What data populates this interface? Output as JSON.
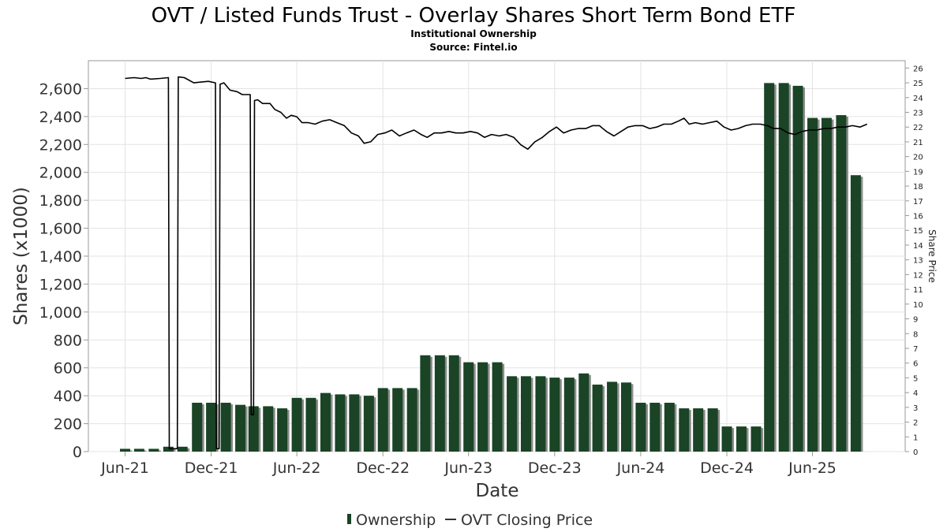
{
  "chart_data": {
    "type": "bar",
    "title": "OVT / Listed Funds Trust - Overlay Shares Short Term Bond ETF",
    "subtitle_lines": [
      "Institutional Ownership",
      "Source: Fintel.io"
    ],
    "xlabel": "Date",
    "ylabel": "Shares (x1000)",
    "y2label": "Share Price",
    "ylim": [
      0,
      2800
    ],
    "y2lim": [
      0,
      26.5
    ],
    "xlim": [
      "2021-03-15",
      "2025-12-15"
    ],
    "grid": true,
    "legend_placement": "bottom-center",
    "y_ticks": [
      0,
      200,
      400,
      600,
      800,
      1000,
      1200,
      1400,
      1600,
      1800,
      2000,
      2200,
      2400,
      2600
    ],
    "y_tick_labels": [
      "0",
      "200",
      "400",
      "600",
      "800",
      "1,000",
      "1,200",
      "1,400",
      "1,600",
      "1,800",
      "2,000",
      "2,200",
      "2,400",
      "2,600"
    ],
    "y2_ticks": [
      0,
      1,
      2,
      3,
      4,
      5,
      6,
      7,
      8,
      9,
      10,
      11,
      12,
      13,
      14,
      15,
      16,
      17,
      18,
      19,
      20,
      21,
      22,
      23,
      24,
      25,
      26
    ],
    "x_ticks": [
      {
        "date": "2021-06-01",
        "label": "Jun-21"
      },
      {
        "date": "2021-12-01",
        "label": "Dec-21"
      },
      {
        "date": "2022-06-01",
        "label": "Jun-22"
      },
      {
        "date": "2022-12-01",
        "label": "Dec-22"
      },
      {
        "date": "2023-06-01",
        "label": "Jun-23"
      },
      {
        "date": "2023-12-01",
        "label": "Dec-23"
      },
      {
        "date": "2024-06-01",
        "label": "Jun-24"
      },
      {
        "date": "2024-12-01",
        "label": "Dec-24"
      },
      {
        "date": "2025-06-01",
        "label": "Jun-25"
      }
    ],
    "series": [
      {
        "name": "Ownership",
        "kind": "bar",
        "color": "#1a4425",
        "shadow_color": "#8c8c8c",
        "points": [
          {
            "date": "2021-06-01",
            "value": 20
          },
          {
            "date": "2021-07-01",
            "value": 20
          },
          {
            "date": "2021-08-01",
            "value": 20
          },
          {
            "date": "2021-09-01",
            "value": 35
          },
          {
            "date": "2021-10-01",
            "value": 35
          },
          {
            "date": "2021-11-01",
            "value": 350
          },
          {
            "date": "2021-12-01",
            "value": 350
          },
          {
            "date": "2022-01-01",
            "value": 350
          },
          {
            "date": "2022-02-01",
            "value": 335
          },
          {
            "date": "2022-03-01",
            "value": 325
          },
          {
            "date": "2022-04-01",
            "value": 325
          },
          {
            "date": "2022-05-01",
            "value": 310
          },
          {
            "date": "2022-06-01",
            "value": 385
          },
          {
            "date": "2022-07-01",
            "value": 385
          },
          {
            "date": "2022-08-01",
            "value": 420
          },
          {
            "date": "2022-09-01",
            "value": 410
          },
          {
            "date": "2022-10-01",
            "value": 410
          },
          {
            "date": "2022-11-01",
            "value": 400
          },
          {
            "date": "2022-12-01",
            "value": 455
          },
          {
            "date": "2023-01-01",
            "value": 455
          },
          {
            "date": "2023-02-01",
            "value": 455
          },
          {
            "date": "2023-03-01",
            "value": 690
          },
          {
            "date": "2023-04-01",
            "value": 690
          },
          {
            "date": "2023-05-01",
            "value": 690
          },
          {
            "date": "2023-06-01",
            "value": 640
          },
          {
            "date": "2023-07-01",
            "value": 640
          },
          {
            "date": "2023-08-01",
            "value": 640
          },
          {
            "date": "2023-09-01",
            "value": 540
          },
          {
            "date": "2023-10-01",
            "value": 540
          },
          {
            "date": "2023-11-01",
            "value": 540
          },
          {
            "date": "2023-12-01",
            "value": 530
          },
          {
            "date": "2024-01-01",
            "value": 530
          },
          {
            "date": "2024-02-01",
            "value": 560
          },
          {
            "date": "2024-03-01",
            "value": 480
          },
          {
            "date": "2024-04-01",
            "value": 500
          },
          {
            "date": "2024-05-01",
            "value": 495
          },
          {
            "date": "2024-06-01",
            "value": 350
          },
          {
            "date": "2024-07-01",
            "value": 350
          },
          {
            "date": "2024-08-01",
            "value": 350
          },
          {
            "date": "2024-09-01",
            "value": 310
          },
          {
            "date": "2024-10-01",
            "value": 310
          },
          {
            "date": "2024-11-01",
            "value": 310
          },
          {
            "date": "2024-12-01",
            "value": 180
          },
          {
            "date": "2025-01-01",
            "value": 180
          },
          {
            "date": "2025-02-01",
            "value": 180
          },
          {
            "date": "2025-03-01",
            "value": 2640
          },
          {
            "date": "2025-04-01",
            "value": 2640
          },
          {
            "date": "2025-05-01",
            "value": 2620
          },
          {
            "date": "2025-06-01",
            "value": 2390
          },
          {
            "date": "2025-07-01",
            "value": 2390
          },
          {
            "date": "2025-08-01",
            "value": 2410
          },
          {
            "date": "2025-09-01",
            "value": 1980
          }
        ]
      },
      {
        "name": "OVT Closing Price",
        "kind": "line",
        "axis": "right",
        "color": "#000000",
        "points": [
          {
            "date": "2021-06-01",
            "value": 25.3
          },
          {
            "date": "2021-06-20",
            "value": 25.35
          },
          {
            "date": "2021-07-05",
            "value": 25.3
          },
          {
            "date": "2021-07-15",
            "value": 25.35
          },
          {
            "date": "2021-07-25",
            "value": 25.25
          },
          {
            "date": "2021-08-15",
            "value": 25.3
          },
          {
            "date": "2021-09-01",
            "value": 25.35
          },
          {
            "date": "2021-09-03",
            "value": 0.2
          },
          {
            "date": "2021-09-20",
            "value": 0.2
          },
          {
            "date": "2021-09-22",
            "value": 25.4
          },
          {
            "date": "2021-10-05",
            "value": 25.35
          },
          {
            "date": "2021-10-25",
            "value": 25.0
          },
          {
            "date": "2021-11-10",
            "value": 25.05
          },
          {
            "date": "2021-11-25",
            "value": 25.1
          },
          {
            "date": "2021-12-10",
            "value": 25.0
          },
          {
            "date": "2021-12-12",
            "value": 0.2
          },
          {
            "date": "2021-12-18",
            "value": 0.2
          },
          {
            "date": "2021-12-20",
            "value": 24.9
          },
          {
            "date": "2021-12-28",
            "value": 25.0
          },
          {
            "date": "2022-01-10",
            "value": 24.5
          },
          {
            "date": "2022-01-25",
            "value": 24.4
          },
          {
            "date": "2022-02-05",
            "value": 24.2
          },
          {
            "date": "2022-02-22",
            "value": 24.2
          },
          {
            "date": "2022-02-24",
            "value": 2.5
          },
          {
            "date": "2022-03-01",
            "value": 2.5
          },
          {
            "date": "2022-03-03",
            "value": 23.8
          },
          {
            "date": "2022-03-10",
            "value": 23.85
          },
          {
            "date": "2022-03-20",
            "value": 23.6
          },
          {
            "date": "2022-04-05",
            "value": 23.6
          },
          {
            "date": "2022-04-15",
            "value": 23.2
          },
          {
            "date": "2022-04-28",
            "value": 23.0
          },
          {
            "date": "2022-05-10",
            "value": 22.6
          },
          {
            "date": "2022-05-20",
            "value": 22.8
          },
          {
            "date": "2022-06-01",
            "value": 22.7
          },
          {
            "date": "2022-06-12",
            "value": 22.3
          },
          {
            "date": "2022-06-25",
            "value": 22.3
          },
          {
            "date": "2022-07-10",
            "value": 22.2
          },
          {
            "date": "2022-07-25",
            "value": 22.4
          },
          {
            "date": "2022-08-10",
            "value": 22.5
          },
          {
            "date": "2022-08-25",
            "value": 22.3
          },
          {
            "date": "2022-09-10",
            "value": 22.1
          },
          {
            "date": "2022-09-25",
            "value": 21.6
          },
          {
            "date": "2022-10-10",
            "value": 21.4
          },
          {
            "date": "2022-10-22",
            "value": 20.9
          },
          {
            "date": "2022-11-05",
            "value": 21.0
          },
          {
            "date": "2022-11-20",
            "value": 21.5
          },
          {
            "date": "2022-12-05",
            "value": 21.6
          },
          {
            "date": "2022-12-20",
            "value": 21.8
          },
          {
            "date": "2023-01-05",
            "value": 21.4
          },
          {
            "date": "2023-01-20",
            "value": 21.6
          },
          {
            "date": "2023-02-05",
            "value": 21.8
          },
          {
            "date": "2023-02-20",
            "value": 21.5
          },
          {
            "date": "2023-03-05",
            "value": 21.3
          },
          {
            "date": "2023-03-20",
            "value": 21.6
          },
          {
            "date": "2023-04-05",
            "value": 21.6
          },
          {
            "date": "2023-04-20",
            "value": 21.7
          },
          {
            "date": "2023-05-05",
            "value": 21.6
          },
          {
            "date": "2023-05-20",
            "value": 21.6
          },
          {
            "date": "2023-06-05",
            "value": 21.7
          },
          {
            "date": "2023-06-20",
            "value": 21.6
          },
          {
            "date": "2023-07-05",
            "value": 21.3
          },
          {
            "date": "2023-07-20",
            "value": 21.5
          },
          {
            "date": "2023-08-05",
            "value": 21.4
          },
          {
            "date": "2023-08-20",
            "value": 21.5
          },
          {
            "date": "2023-09-05",
            "value": 21.3
          },
          {
            "date": "2023-09-20",
            "value": 20.8
          },
          {
            "date": "2023-10-05",
            "value": 20.5
          },
          {
            "date": "2023-10-20",
            "value": 21.0
          },
          {
            "date": "2023-11-05",
            "value": 21.3
          },
          {
            "date": "2023-11-20",
            "value": 21.7
          },
          {
            "date": "2023-12-05",
            "value": 22.0
          },
          {
            "date": "2023-12-20",
            "value": 21.6
          },
          {
            "date": "2024-01-05",
            "value": 21.8
          },
          {
            "date": "2024-01-20",
            "value": 21.9
          },
          {
            "date": "2024-02-05",
            "value": 21.9
          },
          {
            "date": "2024-02-20",
            "value": 22.1
          },
          {
            "date": "2024-03-05",
            "value": 22.1
          },
          {
            "date": "2024-03-20",
            "value": 21.7
          },
          {
            "date": "2024-04-05",
            "value": 21.4
          },
          {
            "date": "2024-04-20",
            "value": 21.7
          },
          {
            "date": "2024-05-05",
            "value": 22.0
          },
          {
            "date": "2024-05-20",
            "value": 22.1
          },
          {
            "date": "2024-06-05",
            "value": 22.1
          },
          {
            "date": "2024-06-20",
            "value": 21.9
          },
          {
            "date": "2024-07-05",
            "value": 22.0
          },
          {
            "date": "2024-07-20",
            "value": 22.2
          },
          {
            "date": "2024-08-05",
            "value": 22.2
          },
          {
            "date": "2024-08-20",
            "value": 22.4
          },
          {
            "date": "2024-09-01",
            "value": 22.6
          },
          {
            "date": "2024-09-12",
            "value": 22.2
          },
          {
            "date": "2024-09-25",
            "value": 22.3
          },
          {
            "date": "2024-10-10",
            "value": 22.2
          },
          {
            "date": "2024-10-25",
            "value": 22.3
          },
          {
            "date": "2024-11-10",
            "value": 22.4
          },
          {
            "date": "2024-11-25",
            "value": 22.0
          },
          {
            "date": "2024-12-10",
            "value": 21.8
          },
          {
            "date": "2024-12-25",
            "value": 21.9
          },
          {
            "date": "2025-01-10",
            "value": 22.1
          },
          {
            "date": "2025-01-25",
            "value": 22.2
          },
          {
            "date": "2025-02-10",
            "value": 22.2
          },
          {
            "date": "2025-02-25",
            "value": 22.1
          },
          {
            "date": "2025-03-10",
            "value": 21.9
          },
          {
            "date": "2025-03-25",
            "value": 21.9
          },
          {
            "date": "2025-04-10",
            "value": 21.6
          },
          {
            "date": "2025-04-25",
            "value": 21.5
          },
          {
            "date": "2025-05-10",
            "value": 21.7
          },
          {
            "date": "2025-05-25",
            "value": 21.8
          },
          {
            "date": "2025-06-10",
            "value": 21.8
          },
          {
            "date": "2025-06-25",
            "value": 21.9
          },
          {
            "date": "2025-07-10",
            "value": 21.9
          },
          {
            "date": "2025-07-25",
            "value": 22.0
          },
          {
            "date": "2025-08-10",
            "value": 22.0
          },
          {
            "date": "2025-08-25",
            "value": 22.1
          },
          {
            "date": "2025-09-10",
            "value": 22.0
          },
          {
            "date": "2025-09-25",
            "value": 22.2
          }
        ]
      }
    ],
    "legend": [
      {
        "label": "Ownership",
        "symbol": "bar"
      },
      {
        "label": "OVT Closing Price",
        "symbol": "line"
      }
    ]
  }
}
